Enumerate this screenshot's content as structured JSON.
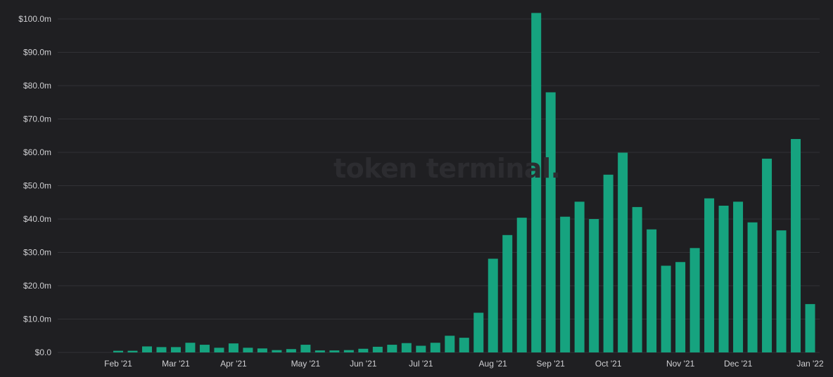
{
  "watermark": "token terminal",
  "chart_data": {
    "type": "bar",
    "ylim": [
      0,
      100
    ],
    "y_unit_prefix": "$",
    "y_unit_suffix": "m",
    "y_ticks": [
      "$0.0",
      "$10.0m",
      "$20.0m",
      "$30.0m",
      "$40.0m",
      "$50.0m",
      "$60.0m",
      "$70.0m",
      "$80.0m",
      "$90.0m",
      "$100.0m"
    ],
    "x_tick_labels": [
      "Feb '21",
      "Mar '21",
      "Apr '21",
      "May '21",
      "Jun '21",
      "Jul '21",
      "Aug '21",
      "Sep '21",
      "Oct '21",
      "Nov '21",
      "Dec '21",
      "Jan '22"
    ],
    "x_tick_bar_index": [
      0,
      4,
      8,
      13,
      17,
      21,
      26,
      30,
      34,
      39,
      43,
      48
    ],
    "grid": true,
    "legend": "none",
    "bar_color": "#16a37f",
    "values": [
      0.5,
      0.5,
      1.8,
      1.6,
      1.6,
      2.9,
      2.3,
      1.4,
      2.7,
      1.4,
      1.2,
      0.7,
      1.0,
      2.3,
      0.6,
      0.6,
      0.7,
      1.1,
      1.7,
      2.3,
      2.8,
      2.0,
      2.9,
      5.0,
      4.4,
      11.9,
      28.1,
      35.2,
      40.4,
      101.8,
      78.0,
      40.7,
      45.2,
      40.0,
      53.3,
      59.9,
      43.6,
      36.9,
      26.0,
      27.1,
      31.3,
      46.2,
      44.0,
      45.2,
      39.0,
      58.1,
      36.6,
      64.0,
      14.5
    ]
  },
  "colors": {
    "background": "#1f1f22",
    "grid": "#323236",
    "tick_text": "#cfcfd2",
    "bar": "#16a37f"
  }
}
